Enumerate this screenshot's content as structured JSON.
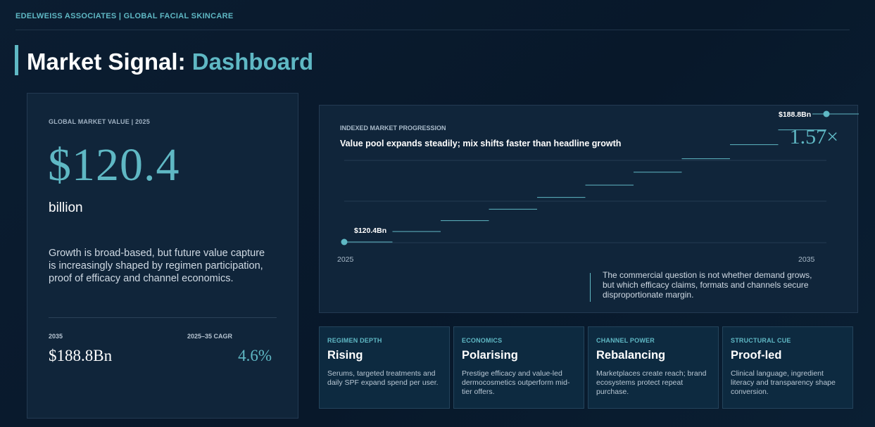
{
  "header": {
    "brand": "EDELWEISS ASSOCIATES | GLOBAL FACIAL SKINCARE",
    "title_main": "Market Signal:",
    "title_highlight": "Dashboard"
  },
  "market_value": {
    "label": "GLOBAL MARKET VALUE | 2025",
    "value": "$120.4",
    "unit": "billion",
    "description": "Growth is broad-based, but future value capture is increasingly shaped by regimen participation, proof of efficacy and channel economics.",
    "future_year_label": "2035",
    "future_value": "$188.8Bn",
    "cagr_label": "2025–35 CAGR",
    "cagr_value": "4.6%"
  },
  "chart": {
    "label": "INDEXED MARKET PROGRESSION",
    "subtitle": "Value pool expands steadily; mix shifts faster than headline growth",
    "multiple": "1.57×",
    "start_label": "$120.4Bn",
    "end_label": "$188.8Bn",
    "note": "The commercial question is not whether demand grows, but which efficacy claims, formats and channels secure disproportionate margin."
  },
  "chart_data": {
    "type": "line",
    "title": "Value pool expands steadily; mix shifts faster than headline growth",
    "xlabel": "",
    "ylabel": "",
    "x": [
      2025,
      2026,
      2027,
      2028,
      2029,
      2030,
      2031,
      2032,
      2033,
      2034,
      2035
    ],
    "series": [
      {
        "values": [
          120.4,
          126.0,
          131.8,
          137.9,
          144.2,
          150.8,
          157.7,
          164.9,
          172.4,
          180.3,
          188.8
        ]
      }
    ],
    "xticks": [
      "2025",
      "2035"
    ],
    "annotations": [
      "$120.4Bn",
      "$188.8Bn",
      "1.57×"
    ],
    "grid": true
  },
  "cards": [
    {
      "label": "REGIMEN DEPTH",
      "title": "Rising",
      "text": "Serums, targeted treatments and daily SPF expand spend per user."
    },
    {
      "label": "ECONOMICS",
      "title": "Polarising",
      "text": "Prestige efficacy and value-led dermocosmetics outperform mid-tier offers."
    },
    {
      "label": "CHANNEL POWER",
      "title": "Rebalancing",
      "text": "Marketplaces create reach; brand ecosystems protect repeat purchase."
    },
    {
      "label": "STRUCTURAL CUE",
      "title": "Proof-led",
      "text": "Clinical language, ingredient literacy and transparency shape conversion."
    }
  ],
  "colors": {
    "accent": "#5fb8c4",
    "background": "#0b1d31",
    "card": "#10253a"
  }
}
